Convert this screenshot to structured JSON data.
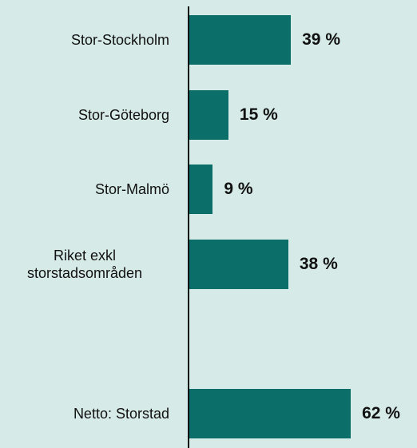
{
  "chart_data": {
    "type": "bar",
    "orientation": "horizontal",
    "categories": [
      "Stor-Stockholm",
      "Stor-Göteborg",
      "Stor-Malmö",
      "Riket exkl storstadsområden",
      null,
      "Netto: Storstad"
    ],
    "values": [
      39,
      15,
      9,
      38,
      null,
      62
    ],
    "value_labels": [
      "39 %",
      "15 %",
      "9 %",
      "38 %",
      null,
      "62 %"
    ],
    "color": "#0b6e69"
  }
}
